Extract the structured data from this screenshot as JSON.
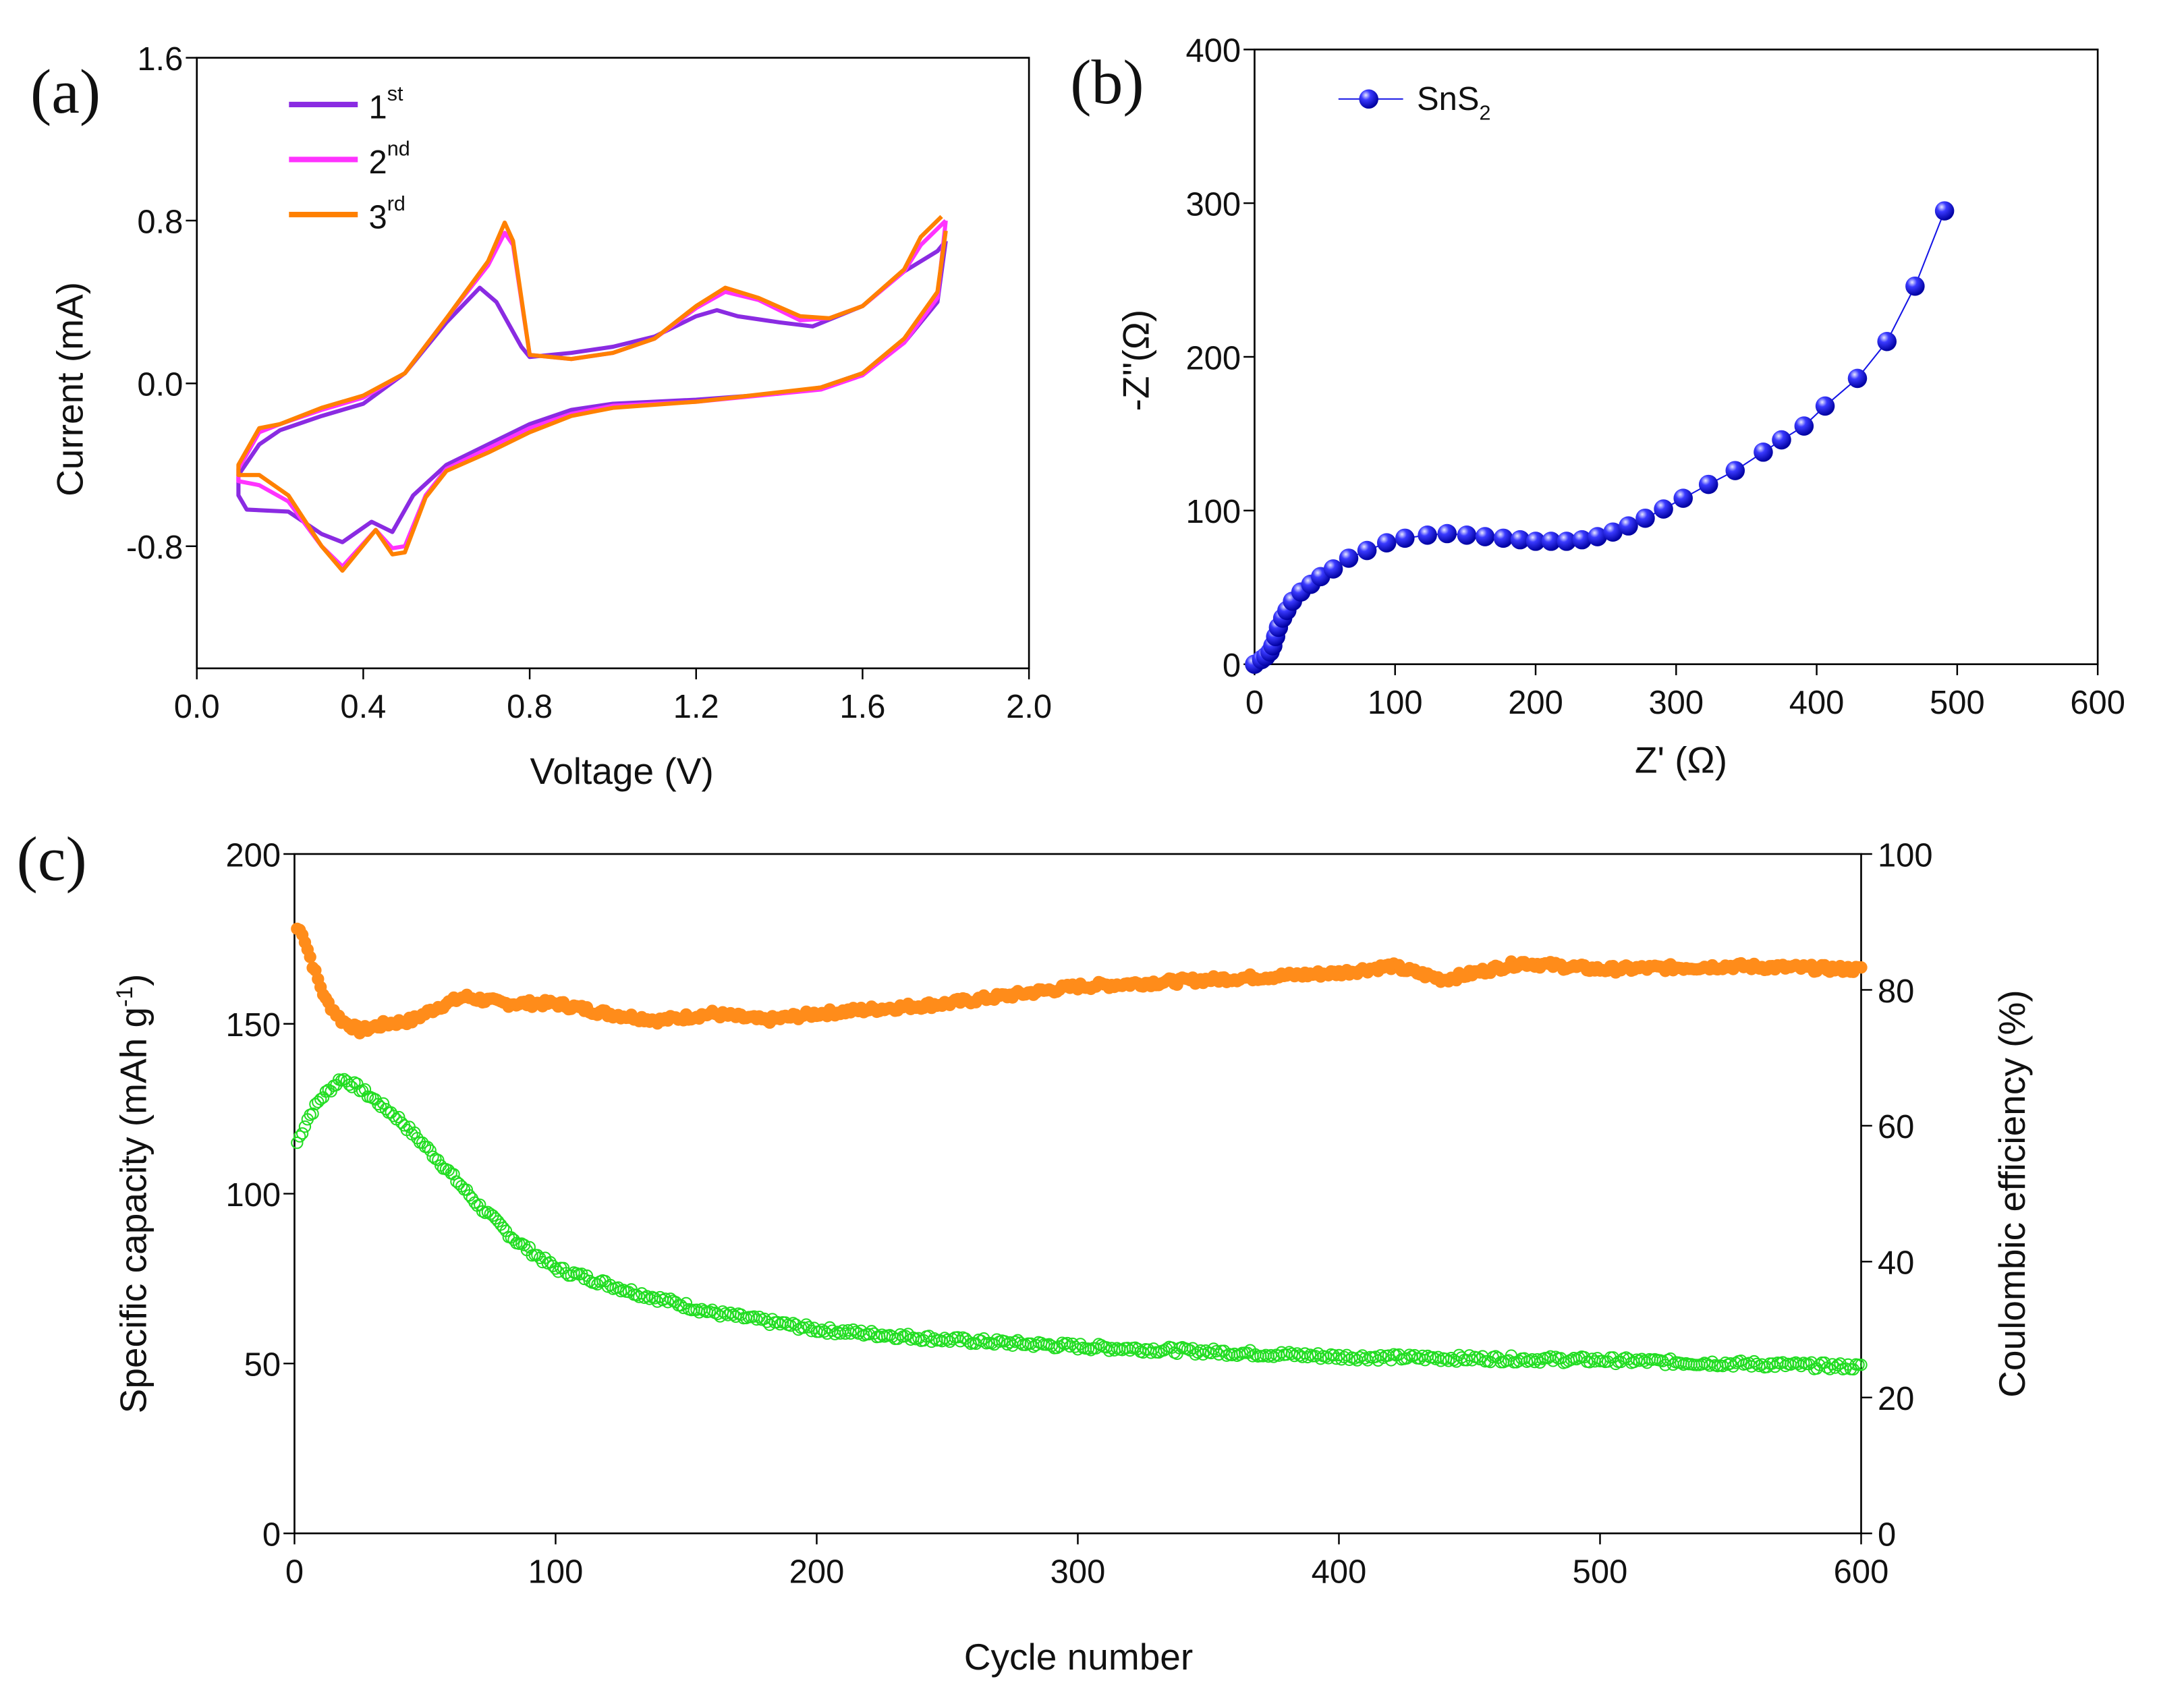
{
  "chart_data": [
    {
      "id": "a",
      "panel_label": "(a)",
      "type": "line",
      "xlabel": "Voltage (V)",
      "ylabel": "Current (mA)",
      "xlim": [
        0,
        2.0
      ],
      "ylim": [
        -1.4,
        1.6
      ],
      "xticks": [
        "0.0",
        "0.4",
        "0.8",
        "1.2",
        "1.6",
        "2.0"
      ],
      "yticks": [
        "-0.8",
        "0.0",
        "0.8",
        "1.6"
      ],
      "legend_position": "top-left",
      "series": [
        {
          "name": "1",
          "sup": "st",
          "color": "#8a2be2",
          "points": [
            [
              1.8,
              0.7
            ],
            [
              1.78,
              0.4
            ],
            [
              1.7,
              0.2
            ],
            [
              1.6,
              0.05
            ],
            [
              1.5,
              -0.02
            ],
            [
              1.4,
              -0.05
            ],
            [
              1.2,
              -0.08
            ],
            [
              1.0,
              -0.1
            ],
            [
              0.9,
              -0.13
            ],
            [
              0.8,
              -0.2
            ],
            [
              0.7,
              -0.3
            ],
            [
              0.6,
              -0.4
            ],
            [
              0.52,
              -0.55
            ],
            [
              0.47,
              -0.73
            ],
            [
              0.42,
              -0.68
            ],
            [
              0.35,
              -0.78
            ],
            [
              0.3,
              -0.74
            ],
            [
              0.22,
              -0.63
            ],
            [
              0.12,
              -0.62
            ],
            [
              0.1,
              -0.55
            ],
            [
              0.1,
              -0.45
            ],
            [
              0.15,
              -0.3
            ],
            [
              0.2,
              -0.23
            ],
            [
              0.3,
              -0.16
            ],
            [
              0.4,
              -0.1
            ],
            [
              0.5,
              0.05
            ],
            [
              0.6,
              0.3
            ],
            [
              0.68,
              0.47
            ],
            [
              0.72,
              0.4
            ],
            [
              0.78,
              0.18
            ],
            [
              0.8,
              0.13
            ],
            [
              0.9,
              0.15
            ],
            [
              1.0,
              0.18
            ],
            [
              1.1,
              0.23
            ],
            [
              1.2,
              0.33
            ],
            [
              1.25,
              0.36
            ],
            [
              1.3,
              0.33
            ],
            [
              1.4,
              0.3
            ],
            [
              1.48,
              0.28
            ],
            [
              1.6,
              0.38
            ],
            [
              1.7,
              0.55
            ],
            [
              1.78,
              0.65
            ],
            [
              1.8,
              0.7
            ]
          ]
        },
        {
          "name": "2",
          "sup": "nd",
          "color": "#ff33ff",
          "points": [
            [
              1.8,
              0.8
            ],
            [
              1.78,
              0.42
            ],
            [
              1.7,
              0.2
            ],
            [
              1.6,
              0.04
            ],
            [
              1.5,
              -0.03
            ],
            [
              1.2,
              -0.09
            ],
            [
              1.0,
              -0.11
            ],
            [
              0.9,
              -0.15
            ],
            [
              0.8,
              -0.22
            ],
            [
              0.7,
              -0.32
            ],
            [
              0.6,
              -0.42
            ],
            [
              0.55,
              -0.55
            ],
            [
              0.5,
              -0.8
            ],
            [
              0.47,
              -0.81
            ],
            [
              0.43,
              -0.72
            ],
            [
              0.35,
              -0.9
            ],
            [
              0.3,
              -0.8
            ],
            [
              0.22,
              -0.58
            ],
            [
              0.15,
              -0.5
            ],
            [
              0.1,
              -0.48
            ],
            [
              0.1,
              -0.42
            ],
            [
              0.15,
              -0.24
            ],
            [
              0.2,
              -0.2
            ],
            [
              0.3,
              -0.13
            ],
            [
              0.4,
              -0.07
            ],
            [
              0.5,
              0.05
            ],
            [
              0.6,
              0.32
            ],
            [
              0.7,
              0.58
            ],
            [
              0.74,
              0.74
            ],
            [
              0.76,
              0.68
            ],
            [
              0.8,
              0.14
            ],
            [
              0.9,
              0.12
            ],
            [
              1.0,
              0.15
            ],
            [
              1.1,
              0.22
            ],
            [
              1.2,
              0.37
            ],
            [
              1.27,
              0.45
            ],
            [
              1.35,
              0.41
            ],
            [
              1.45,
              0.31
            ],
            [
              1.52,
              0.32
            ],
            [
              1.6,
              0.38
            ],
            [
              1.7,
              0.55
            ],
            [
              1.74,
              0.68
            ],
            [
              1.8,
              0.8
            ]
          ]
        },
        {
          "name": "3",
          "sup": "rd",
          "color": "#ff8000",
          "points": [
            [
              1.8,
              0.75
            ],
            [
              1.78,
              0.45
            ],
            [
              1.7,
              0.22
            ],
            [
              1.6,
              0.05
            ],
            [
              1.5,
              -0.02
            ],
            [
              1.2,
              -0.09
            ],
            [
              1.0,
              -0.12
            ],
            [
              0.9,
              -0.16
            ],
            [
              0.8,
              -0.24
            ],
            [
              0.7,
              -0.34
            ],
            [
              0.6,
              -0.43
            ],
            [
              0.55,
              -0.56
            ],
            [
              0.5,
              -0.83
            ],
            [
              0.47,
              -0.84
            ],
            [
              0.43,
              -0.72
            ],
            [
              0.35,
              -0.92
            ],
            [
              0.3,
              -0.8
            ],
            [
              0.22,
              -0.55
            ],
            [
              0.15,
              -0.45
            ],
            [
              0.1,
              -0.45
            ],
            [
              0.1,
              -0.4
            ],
            [
              0.15,
              -0.22
            ],
            [
              0.2,
              -0.2
            ],
            [
              0.3,
              -0.12
            ],
            [
              0.4,
              -0.06
            ],
            [
              0.5,
              0.05
            ],
            [
              0.6,
              0.32
            ],
            [
              0.7,
              0.6
            ],
            [
              0.74,
              0.79
            ],
            [
              0.76,
              0.7
            ],
            [
              0.8,
              0.14
            ],
            [
              0.9,
              0.12
            ],
            [
              1.0,
              0.15
            ],
            [
              1.1,
              0.22
            ],
            [
              1.2,
              0.38
            ],
            [
              1.27,
              0.47
            ],
            [
              1.35,
              0.42
            ],
            [
              1.45,
              0.33
            ],
            [
              1.52,
              0.32
            ],
            [
              1.6,
              0.38
            ],
            [
              1.7,
              0.56
            ],
            [
              1.74,
              0.72
            ],
            [
              1.79,
              0.82
            ]
          ]
        }
      ]
    },
    {
      "id": "b",
      "panel_label": "(b)",
      "type": "scatter",
      "xlabel": "Z' (Ω)",
      "ylabel": "-Z''(Ω)",
      "xlim": [
        0,
        600
      ],
      "ylim": [
        0,
        400
      ],
      "xticks": [
        "0",
        "100",
        "200",
        "300",
        "400",
        "500",
        "600"
      ],
      "yticks": [
        "0",
        "100",
        "200",
        "300",
        "400"
      ],
      "legend_position": "top-left",
      "series": [
        {
          "name": "SnS",
          "sub": "2",
          "color": "#1414e6",
          "points": [
            [
              0,
              0
            ],
            [
              5,
              3
            ],
            [
              8,
              5
            ],
            [
              11,
              8
            ],
            [
              13,
              12
            ],
            [
              15,
              18
            ],
            [
              17,
              24
            ],
            [
              20,
              30
            ],
            [
              23,
              35
            ],
            [
              27,
              41
            ],
            [
              33,
              47
            ],
            [
              40,
              52
            ],
            [
              47,
              57
            ],
            [
              56,
              62
            ],
            [
              67,
              69
            ],
            [
              80,
              74
            ],
            [
              94,
              79
            ],
            [
              107,
              82
            ],
            [
              123,
              84
            ],
            [
              137,
              85
            ],
            [
              151,
              84
            ],
            [
              164,
              83
            ],
            [
              177,
              82
            ],
            [
              189,
              81
            ],
            [
              200,
              80
            ],
            [
              211,
              80
            ],
            [
              222,
              80
            ],
            [
              233,
              81
            ],
            [
              244,
              83
            ],
            [
              255,
              86
            ],
            [
              266,
              90
            ],
            [
              278,
              95
            ],
            [
              291,
              101
            ],
            [
              305,
              108
            ],
            [
              323,
              117
            ],
            [
              342,
              126
            ],
            [
              362,
              138
            ],
            [
              375,
              146
            ],
            [
              391,
              155
            ],
            [
              406,
              168
            ],
            [
              429,
              186
            ],
            [
              450,
              210
            ],
            [
              470,
              246
            ],
            [
              491,
              295
            ]
          ]
        }
      ]
    },
    {
      "id": "c",
      "panel_label": "(c)",
      "type": "scatter",
      "xlabel": "Cycle number",
      "ylabel": "Specific capacity (mAh g",
      "ylabel_sup": "-1",
      "ylabel_end": ")",
      "y2label": "Coulombic efficiency (%)",
      "xlim": [
        0,
        600
      ],
      "ylim": [
        0,
        200
      ],
      "y2lim": [
        0,
        100
      ],
      "xticks": [
        "0",
        "100",
        "200",
        "300",
        "400",
        "500",
        "600"
      ],
      "yticks": [
        "0",
        "50",
        "100",
        "150",
        "200"
      ],
      "y2ticks": [
        "0",
        "20",
        "40",
        "60",
        "80",
        "100"
      ],
      "series": [
        {
          "name": "orange series",
          "color": "#ff8c1a",
          "filled": true,
          "points": [
            [
              1,
              178
            ],
            [
              3,
              177
            ],
            [
              5,
              172
            ],
            [
              8,
              165
            ],
            [
              12,
              157
            ],
            [
              18,
              151
            ],
            [
              25,
              148
            ],
            [
              35,
              150
            ],
            [
              45,
              151
            ],
            [
              55,
              155
            ],
            [
              65,
              158
            ],
            [
              80,
              156
            ],
            [
              100,
              156
            ],
            [
              120,
              153
            ],
            [
              140,
              151
            ],
            [
              160,
              153
            ],
            [
              180,
              151
            ],
            [
              200,
              153
            ],
            [
              250,
              156
            ],
            [
              300,
              161
            ],
            [
              350,
              163
            ],
            [
              400,
              165
            ],
            [
              420,
              167
            ],
            [
              440,
              163
            ],
            [
              470,
              168
            ],
            [
              500,
              166
            ],
            [
              550,
              167
            ],
            [
              600,
              166
            ]
          ]
        },
        {
          "name": "green series",
          "color": "#22dd22",
          "filled": false,
          "points": [
            [
              1,
              115
            ],
            [
              5,
              122
            ],
            [
              10,
              128
            ],
            [
              18,
              134
            ],
            [
              25,
              131
            ],
            [
              40,
              122
            ],
            [
              55,
              110
            ],
            [
              70,
              97
            ],
            [
              85,
              86
            ],
            [
              100,
              78
            ],
            [
              130,
              71
            ],
            [
              160,
              65
            ],
            [
              200,
              60
            ],
            [
              250,
              57
            ],
            [
              300,
              55
            ],
            [
              400,
              52
            ],
            [
              500,
              51
            ],
            [
              600,
              49
            ]
          ]
        }
      ]
    }
  ]
}
